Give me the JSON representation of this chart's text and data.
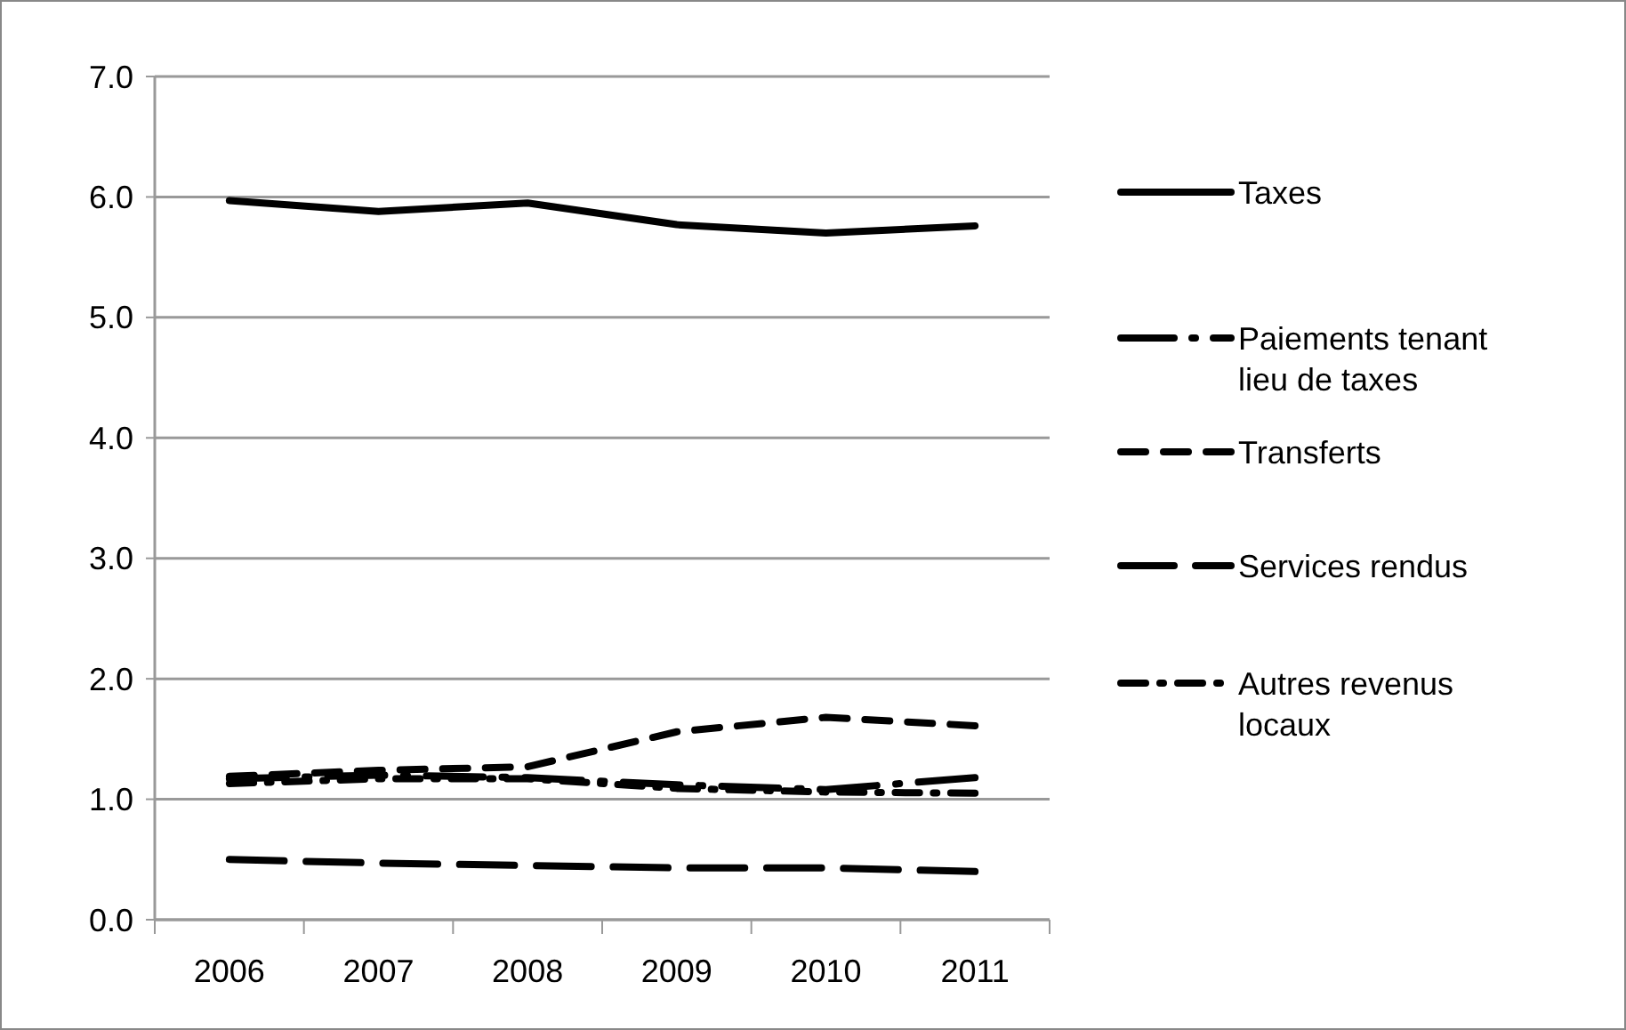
{
  "chart_data": {
    "type": "line",
    "categories": [
      "2006",
      "2007",
      "2008",
      "2009",
      "2010",
      "2011"
    ],
    "series": [
      {
        "name": "Taxes",
        "color": "#000000",
        "line_style": "solid",
        "values": [
          5.97,
          5.88,
          5.95,
          5.77,
          5.7,
          5.76
        ]
      },
      {
        "name": "Paiements tenant lieu de taxes",
        "color": "#000000",
        "line_style": "dashdot",
        "values": [
          1.17,
          1.2,
          1.18,
          1.12,
          1.08,
          1.18
        ]
      },
      {
        "name": "Transferts",
        "color": "#000000",
        "line_style": "dashed",
        "values": [
          1.19,
          1.24,
          1.27,
          1.56,
          1.68,
          1.61
        ]
      },
      {
        "name": "Services rendus",
        "color": "#000000",
        "line_style": "longdash",
        "values": [
          0.5,
          0.47,
          0.45,
          0.43,
          0.43,
          0.4
        ]
      },
      {
        "name": "Autres revenus locaux",
        "color": "#000000",
        "line_style": "dotdash",
        "values": [
          1.13,
          1.17,
          1.17,
          1.09,
          1.06,
          1.05
        ]
      }
    ],
    "ylim": [
      0,
      7
    ],
    "yticks": [
      {
        "value": 0,
        "label": "0.0"
      },
      {
        "value": 1,
        "label": "1.0"
      },
      {
        "value": 2,
        "label": "2.0"
      },
      {
        "value": 3,
        "label": "3.0"
      },
      {
        "value": 4,
        "label": "4.0"
      },
      {
        "value": 5,
        "label": "5.0"
      },
      {
        "value": 6,
        "label": "6.0"
      },
      {
        "value": 7,
        "label": "7.0"
      }
    ],
    "grid": "y",
    "legend": "right",
    "marker": "none"
  }
}
